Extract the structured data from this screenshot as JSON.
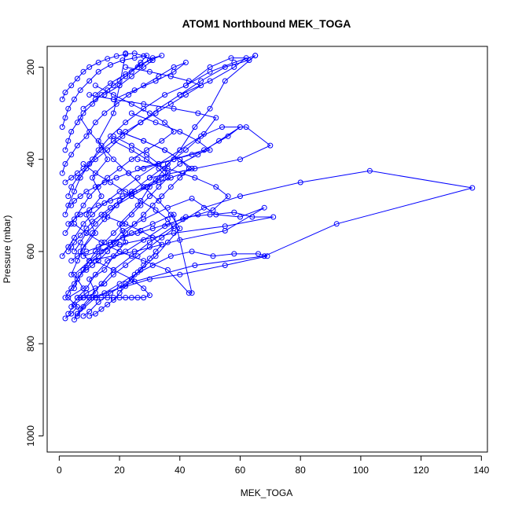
{
  "chart_data": {
    "type": "line",
    "title": "ATOM1 Northbound MEK_TOGA",
    "xlabel": "MEK_TOGA",
    "ylabel": "Pressure (mbar)",
    "xlim": [
      -4,
      142
    ],
    "ylim": [
      1035,
      155
    ],
    "y_reversed": true,
    "x_ticks": [
      0,
      20,
      40,
      60,
      80,
      100,
      120,
      140
    ],
    "y_ticks": [
      200,
      400,
      600,
      800,
      1000
    ],
    "series_color": "#0000ff",
    "marker": "open-circle",
    "series": [
      {
        "x": [
          2,
          4,
          6,
          3,
          8,
          5,
          10,
          7,
          12,
          9,
          14,
          11,
          16,
          13,
          18,
          20,
          22
        ],
        "y": [
          745,
          735,
          720,
          700,
          680,
          650,
          620,
          600,
          560,
          520,
          480,
          440,
          400,
          360,
          300,
          240,
          170
        ]
      },
      {
        "x": [
          3,
          5,
          8,
          12,
          10,
          15,
          18,
          22,
          20,
          26,
          30,
          35,
          40,
          45,
          50,
          55,
          65
        ],
        "y": [
          735,
          715,
          700,
          690,
          660,
          640,
          610,
          580,
          540,
          500,
          460,
          420,
          380,
          330,
          290,
          230,
          175
        ]
      },
      {
        "x": [
          5,
          7,
          10,
          14,
          18,
          24,
          30,
          38,
          48,
          60,
          80,
          103,
          137,
          92,
          68,
          45,
          25,
          12,
          6
        ],
        "y": [
          748,
          725,
          700,
          670,
          640,
          610,
          580,
          545,
          505,
          480,
          450,
          425,
          462,
          540,
          610,
          630,
          665,
          700,
          735
        ]
      },
      {
        "x": [
          2,
          4,
          6,
          9,
          13,
          17,
          21,
          28,
          36,
          44,
          52,
          60,
          68,
          55,
          40,
          25,
          10
        ],
        "y": [
          700,
          680,
          660,
          635,
          610,
          585,
          555,
          530,
          505,
          485,
          520,
          525,
          505,
          555,
          575,
          600,
          620
        ]
      },
      {
        "x": [
          4,
          6,
          9,
          12,
          16,
          22,
          28,
          35,
          42,
          50,
          58,
          64,
          71,
          55,
          38,
          20,
          8
        ],
        "y": [
          720,
          700,
          680,
          650,
          620,
          600,
          575,
          545,
          525,
          520,
          515,
          525,
          525,
          545,
          560,
          585,
          610
        ]
      },
      {
        "x": [
          1,
          3,
          5,
          8,
          11,
          15,
          20,
          26,
          33,
          40,
          47,
          54,
          62,
          70,
          60,
          45,
          30
        ],
        "y": [
          610,
          590,
          570,
          540,
          520,
          495,
          470,
          440,
          410,
          380,
          350,
          330,
          330,
          370,
          400,
          420,
          440
        ]
      },
      {
        "x": [
          6,
          8,
          11,
          15,
          20,
          25,
          31,
          37,
          44,
          51,
          58,
          66,
          69,
          55,
          40,
          30,
          20
        ],
        "y": [
          740,
          720,
          700,
          690,
          670,
          650,
          630,
          610,
          600,
          610,
          605,
          605,
          610,
          630,
          650,
          660,
          680
        ]
      },
      {
        "x": [
          3,
          5,
          7,
          10,
          14,
          18,
          24,
          31,
          38,
          44,
          43,
          36,
          28,
          20,
          14,
          9,
          5
        ],
        "y": [
          690,
          670,
          650,
          620,
          600,
          580,
          560,
          540,
          520,
          690,
          690,
          640,
          620,
          600,
          580,
          560,
          540
        ]
      },
      {
        "x": [
          2,
          3,
          5,
          7,
          10,
          13,
          17,
          22,
          28,
          35,
          42,
          50,
          57,
          62,
          58,
          50,
          40
        ],
        "y": [
          520,
          500,
          470,
          440,
          410,
          380,
          350,
          320,
          290,
          260,
          240,
          200,
          180,
          180,
          200,
          230,
          260
        ]
      },
      {
        "x": [
          4,
          6,
          8,
          11,
          15,
          19,
          24,
          30,
          36,
          42,
          48,
          52,
          46,
          38,
          28,
          18,
          10
        ],
        "y": [
          650,
          620,
          590,
          560,
          530,
          500,
          470,
          440,
          410,
          380,
          345,
          310,
          300,
          290,
          280,
          270,
          260
        ]
      },
      {
        "x": [
          1,
          2,
          4,
          6,
          9,
          12,
          15,
          19,
          23,
          28,
          33,
          38,
          42,
          38,
          32,
          25,
          18
        ],
        "y": [
          430,
          410,
          390,
          370,
          350,
          320,
          300,
          280,
          260,
          240,
          220,
          200,
          190,
          210,
          230,
          250,
          270
        ]
      },
      {
        "x": [
          5,
          7,
          9,
          12,
          15,
          19,
          24,
          29,
          34,
          40,
          46,
          53,
          60,
          56,
          48,
          38,
          26
        ],
        "y": [
          600,
          580,
          560,
          540,
          520,
          500,
          480,
          460,
          440,
          410,
          390,
          360,
          330,
          350,
          380,
          400,
          420
        ]
      },
      {
        "x": [
          2,
          4,
          6,
          8,
          10,
          13,
          16,
          20,
          24,
          29,
          34,
          38,
          35,
          30,
          24,
          18,
          12
        ],
        "y": [
          560,
          540,
          520,
          500,
          480,
          460,
          440,
          420,
          400,
          380,
          360,
          340,
          320,
          300,
          280,
          260,
          240
        ]
      },
      {
        "x": [
          7,
          9,
          12,
          15,
          18,
          22,
          26,
          30,
          34,
          38,
          36,
          32,
          27,
          22,
          17,
          12,
          8
        ],
        "y": [
          700,
          690,
          680,
          670,
          650,
          630,
          610,
          590,
          570,
          550,
          530,
          510,
          490,
          470,
          450,
          430,
          410
        ]
      },
      {
        "x": [
          3,
          4,
          6,
          9,
          12,
          16,
          21,
          27,
          33,
          40,
          47,
          55,
          63,
          65,
          58,
          50,
          42
        ],
        "y": [
          480,
          460,
          440,
          420,
          400,
          380,
          350,
          320,
          290,
          260,
          230,
          200,
          185,
          175,
          190,
          210,
          240
        ]
      },
      {
        "x": [
          8,
          10,
          13,
          17,
          22,
          27,
          32,
          36,
          40,
          37,
          33,
          28,
          23,
          18,
          14,
          10,
          7
        ],
        "y": [
          740,
          730,
          710,
          690,
          670,
          640,
          610,
          580,
          550,
          520,
          490,
          460,
          430,
          400,
          370,
          340,
          310
        ]
      },
      {
        "x": [
          2,
          3,
          4,
          6,
          8,
          11,
          14,
          18,
          22,
          26,
          30,
          34,
          31,
          27,
          22,
          17,
          12
        ],
        "y": [
          380,
          360,
          340,
          320,
          300,
          280,
          260,
          240,
          220,
          200,
          185,
          175,
          180,
          195,
          215,
          235,
          260
        ]
      },
      {
        "x": [
          4,
          6,
          9,
          13,
          17,
          21,
          26,
          31,
          36,
          41,
          46,
          51,
          56,
          52,
          45,
          36,
          26
        ],
        "y": [
          620,
          610,
          600,
          590,
          580,
          570,
          560,
          550,
          540,
          530,
          520,
          510,
          480,
          460,
          440,
          420,
          400
        ]
      },
      {
        "x": [
          1,
          2,
          3,
          5,
          7,
          10,
          13,
          17,
          21,
          25,
          29,
          27,
          24,
          20,
          16,
          12,
          8
        ],
        "y": [
          330,
          310,
          290,
          270,
          250,
          230,
          210,
          195,
          185,
          180,
          175,
          190,
          210,
          230,
          250,
          270,
          290
        ]
      },
      {
        "x": [
          6,
          8,
          10,
          12,
          14,
          16,
          18,
          20,
          22,
          24,
          26,
          28,
          30,
          28,
          24,
          18,
          12
        ],
        "y": [
          700,
          700,
          700,
          700,
          700,
          700,
          700,
          700,
          700,
          700,
          700,
          700,
          695,
          680,
          660,
          640,
          620
        ]
      },
      {
        "x": [
          3,
          5,
          7,
          10,
          13,
          17,
          21,
          25,
          29,
          33,
          37,
          41,
          44,
          40,
          35,
          28,
          20
        ],
        "y": [
          540,
          530,
          520,
          510,
          500,
          490,
          480,
          470,
          460,
          450,
          440,
          430,
          420,
          400,
          380,
          360,
          340
        ]
      },
      {
        "x": [
          9,
          11,
          13,
          16,
          19,
          22,
          25,
          28,
          31,
          34,
          37,
          40,
          43,
          40,
          35,
          28,
          20
        ],
        "y": [
          640,
          630,
          620,
          600,
          580,
          560,
          540,
          520,
          500,
          480,
          460,
          440,
          420,
          400,
          380,
          360,
          340
        ]
      },
      {
        "x": [
          2,
          4,
          6,
          8,
          11,
          14,
          18,
          22,
          27,
          32,
          37,
          42,
          47,
          43,
          37,
          30,
          22
        ],
        "y": [
          450,
          440,
          430,
          420,
          400,
          380,
          360,
          340,
          320,
          300,
          280,
          260,
          240,
          230,
          220,
          210,
          200
        ]
      },
      {
        "x": [
          5,
          6,
          8,
          10,
          12,
          15,
          18,
          21,
          24,
          27,
          30,
          33,
          36,
          33,
          29,
          24,
          18
        ],
        "y": [
          680,
          660,
          640,
          620,
          600,
          580,
          560,
          540,
          520,
          500,
          480,
          460,
          440,
          420,
          400,
          380,
          360
        ]
      },
      {
        "x": [
          1,
          2,
          4,
          6,
          8,
          10,
          13,
          16,
          19,
          22,
          25,
          28,
          31,
          28,
          24,
          20,
          15
        ],
        "y": [
          270,
          255,
          240,
          225,
          210,
          200,
          190,
          182,
          176,
          172,
          170,
          176,
          185,
          200,
          220,
          240,
          260
        ]
      },
      {
        "x": [
          10,
          12,
          14,
          16,
          18,
          20,
          22,
          24,
          26,
          28,
          30,
          32,
          34,
          31,
          27,
          22,
          16
        ],
        "y": [
          740,
          735,
          725,
          715,
          705,
          690,
          675,
          660,
          645,
          630,
          615,
          600,
          585,
          570,
          555,
          540,
          525
        ]
      },
      {
        "x": [
          4,
          5,
          7,
          9,
          12,
          15,
          19,
          23,
          28,
          33,
          38,
          44,
          50,
          46,
          40,
          32,
          24
        ],
        "y": [
          500,
          490,
          480,
          470,
          460,
          450,
          440,
          430,
          420,
          410,
          400,
          390,
          380,
          360,
          340,
          320,
          300
        ]
      },
      {
        "x": [
          3,
          4,
          5,
          7,
          9,
          11,
          14,
          17,
          20,
          24,
          28,
          32,
          36,
          33,
          29,
          24,
          18
        ],
        "y": [
          600,
          590,
          580,
          565,
          550,
          535,
          520,
          505,
          490,
          475,
          460,
          445,
          430,
          410,
          390,
          370,
          350
        ]
      }
    ]
  }
}
